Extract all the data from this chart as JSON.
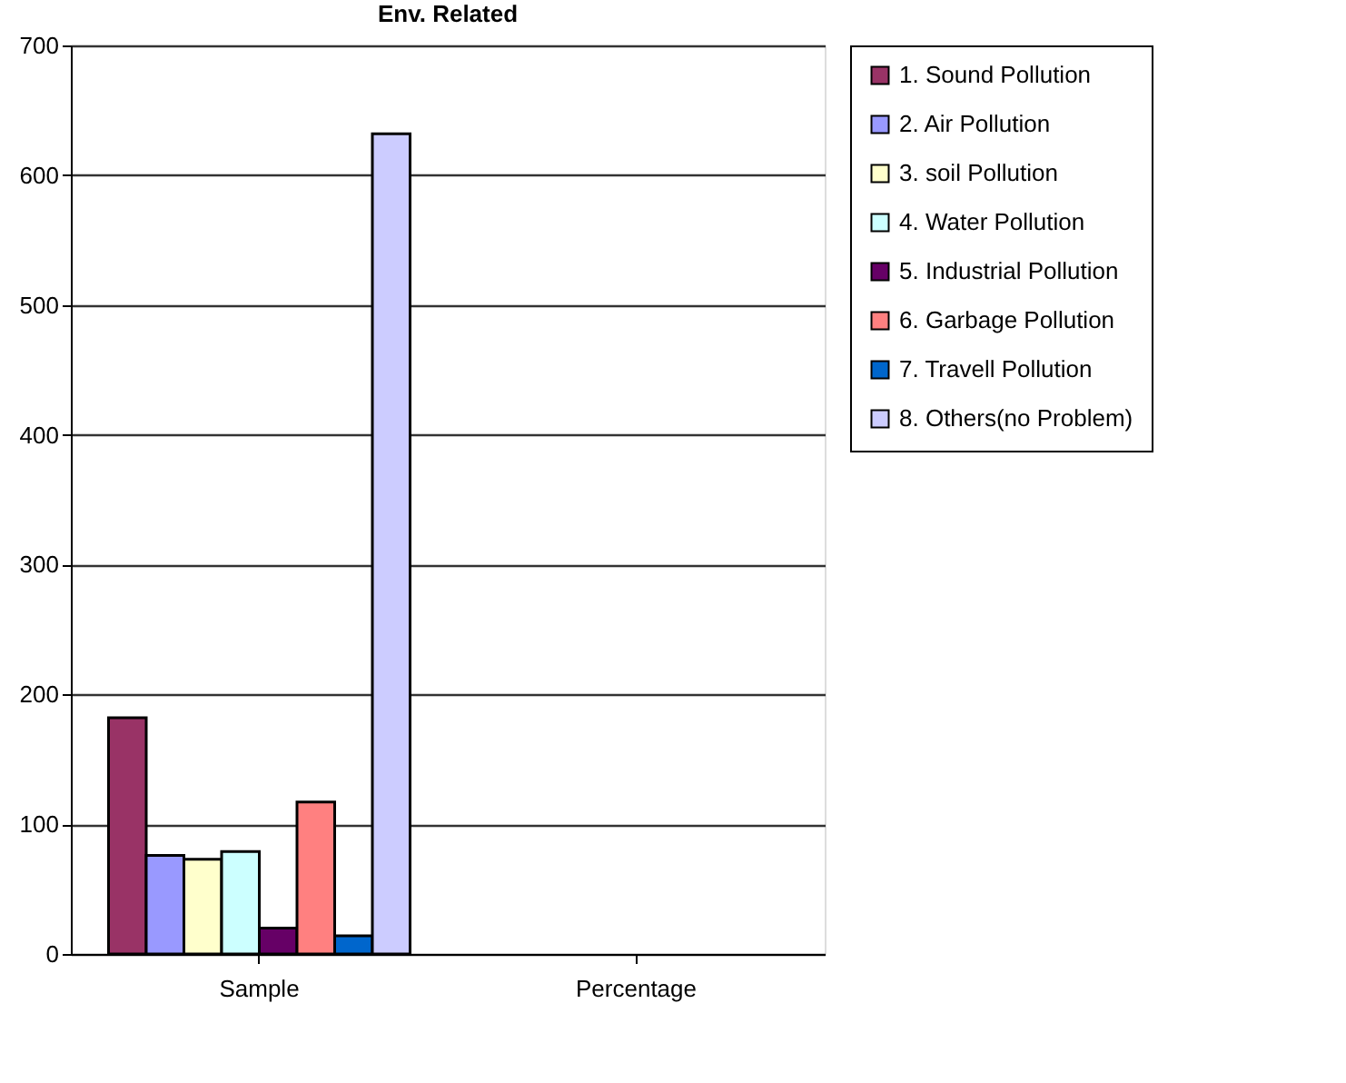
{
  "chart_data": {
    "type": "bar",
    "title": "Env. Related",
    "categories": [
      "Sample",
      "Percentage"
    ],
    "series": [
      {
        "name": "1. Sound Pollution",
        "color": "#993366",
        "values": [
          182,
          null
        ]
      },
      {
        "name": "2. Air Pollution",
        "color": "#9999ff",
        "values": [
          76,
          null
        ]
      },
      {
        "name": "3. soil Pollution",
        "color": "#ffffcc",
        "values": [
          73,
          null
        ]
      },
      {
        "name": "4. Water Pollution",
        "color": "#ccffff",
        "values": [
          79,
          null
        ]
      },
      {
        "name": "5. Industrial Pollution",
        "color": "#660066",
        "values": [
          20,
          null
        ]
      },
      {
        "name": "6. Garbage Pollution",
        "color": "#ff8080",
        "values": [
          117,
          null
        ]
      },
      {
        "name": "7. Travell Pollution",
        "color": "#0066cc",
        "values": [
          14,
          null
        ]
      },
      {
        "name": "8. Others(no Problem)",
        "color": "#ccccff",
        "values": [
          632,
          null
        ]
      }
    ],
    "ylim": [
      0,
      700
    ],
    "yticks": [
      0,
      100,
      200,
      300,
      400,
      500,
      600,
      700
    ],
    "grid": "y",
    "legend": "right"
  }
}
